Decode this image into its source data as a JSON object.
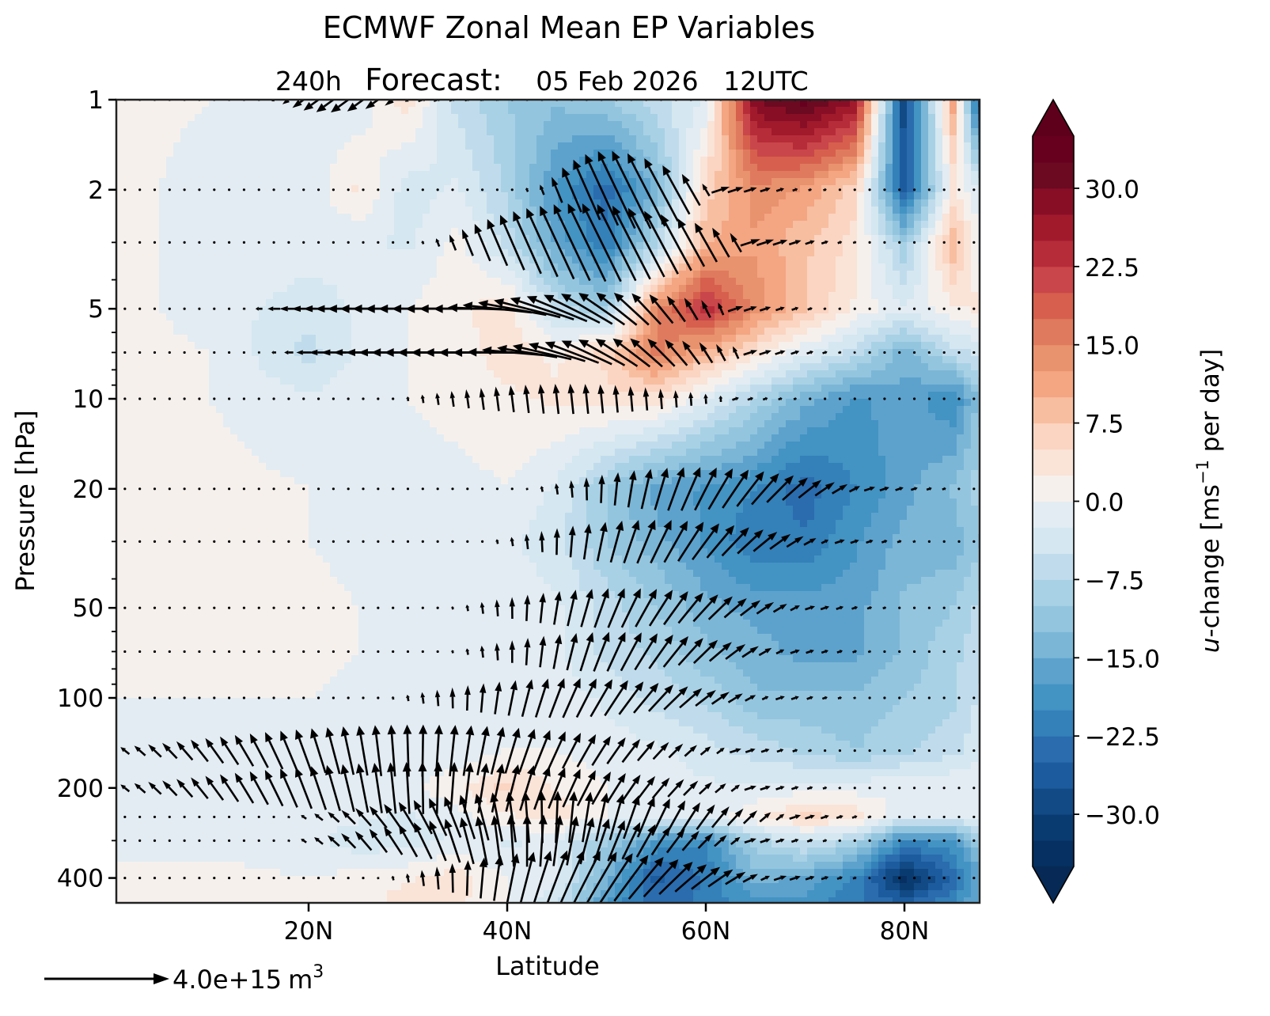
{
  "chart_data": {
    "type": "heatmap",
    "title": "ECMWF Zonal Mean EP Variables",
    "subtitle": {
      "lead": "240h",
      "label": "Forecast:",
      "date": "05 Feb 2026",
      "time": "12UTC"
    },
    "xlabel": "Latitude",
    "ylabel": "Pressure [hPa]",
    "xlim": [
      0.6,
      87.6
    ],
    "ylim": [
      484,
      1
    ],
    "yscale": "log",
    "x_ticks": [
      {
        "value": 20,
        "label": "20N"
      },
      {
        "value": 40,
        "label": "40N"
      },
      {
        "value": 60,
        "label": "60N"
      },
      {
        "value": 80,
        "label": "80N"
      }
    ],
    "y_ticks": [
      {
        "value": 1,
        "label": "1"
      },
      {
        "value": 2,
        "label": "2"
      },
      {
        "value": 5,
        "label": "5"
      },
      {
        "value": 10,
        "label": "10"
      },
      {
        "value": 20,
        "label": "20"
      },
      {
        "value": 50,
        "label": "50"
      },
      {
        "value": 100,
        "label": "100"
      },
      {
        "value": 200,
        "label": "200"
      },
      {
        "value": 400,
        "label": "400"
      }
    ],
    "y_minor_ticks": [
      3,
      4,
      6,
      7,
      8,
      9,
      30,
      40,
      60,
      70,
      80,
      90,
      300
    ],
    "colorbar": {
      "label_italic": "u",
      "label_rest": "-change [ms",
      "label_sup": "−1",
      "label_end": " per day]",
      "levels_min": -35,
      "levels_max": 35,
      "level_step": 2.5,
      "extend": "both",
      "ticks": [
        {
          "value": 30,
          "label": "30.0"
        },
        {
          "value": 22.5,
          "label": "22.5"
        },
        {
          "value": 15,
          "label": "15.0"
        },
        {
          "value": 7.5,
          "label": "7.5"
        },
        {
          "value": 0,
          "label": "0.0"
        },
        {
          "value": -7.5,
          "label": "−7.5"
        },
        {
          "value": -15,
          "label": "−15.0"
        },
        {
          "value": -22.5,
          "label": "−22.5"
        },
        {
          "value": -30,
          "label": "−30.0"
        }
      ],
      "colors": [
        "#053061",
        "#0a3b70",
        "#124a85",
        "#1c5c9e",
        "#2a6cae",
        "#3480b9",
        "#4393c3",
        "#5da2cd",
        "#7bb6d6",
        "#94c5df",
        "#a8d1e5",
        "#c0dcec",
        "#d5e7f0",
        "#e3ecf3",
        "#eff3f5",
        "#f6f0ec",
        "#fae3d7",
        "#fbd5c2",
        "#f7bea0",
        "#f4a582",
        "#e9926e",
        "#df7a5e",
        "#d6604d",
        "#c9464a",
        "#b72c39",
        "#a11a2c",
        "#880e26",
        "#6b0a21",
        "#67001f"
      ],
      "extend_colors": {
        "low": "#062a55",
        "high": "#5e001c"
      }
    },
    "field": {
      "description_units": "u-change [ms-1 per day]",
      "lat": [
        0,
        10,
        20,
        25,
        30,
        35,
        40,
        45,
        50,
        55,
        60,
        65,
        70,
        75,
        80,
        85,
        88
      ],
      "pressure": [
        1,
        2,
        3,
        5,
        7,
        10,
        20,
        30,
        50,
        70,
        100,
        150,
        200,
        250,
        300,
        400,
        480
      ],
      "values": [
        [
          1,
          0,
          -1,
          -2,
          4,
          -6,
          -10,
          -12,
          -10,
          -6,
          -2,
          30,
          34,
          28,
          -30,
          12,
          -35
        ],
        [
          1,
          -1,
          -2,
          3,
          -4,
          -2,
          -8,
          -18,
          -24,
          -14,
          6,
          14,
          12,
          6,
          -26,
          3,
          -4
        ],
        [
          0,
          0,
          -1,
          -2,
          -3,
          1,
          -6,
          -16,
          -22,
          -8,
          10,
          12,
          8,
          4,
          -10,
          10,
          -2
        ],
        [
          1,
          -1,
          -4,
          -2,
          0,
          2,
          4,
          -6,
          -10,
          14,
          24,
          14,
          8,
          2,
          -2,
          2,
          3
        ],
        [
          1,
          0,
          -6,
          -2,
          0,
          1,
          4,
          2,
          6,
          16,
          10,
          4,
          -2,
          -6,
          -14,
          -6,
          -4
        ],
        [
          1,
          0,
          -2,
          -1,
          0,
          1,
          2,
          3,
          4,
          4,
          -2,
          -8,
          -14,
          -18,
          -16,
          -20,
          -10
        ],
        [
          0,
          1,
          0,
          0,
          -1,
          -1,
          0,
          -3,
          -10,
          -16,
          -18,
          -20,
          -24,
          -20,
          -16,
          -12,
          -8
        ],
        [
          0,
          0,
          0,
          -1,
          -1,
          -2,
          -2,
          -4,
          -10,
          -14,
          -18,
          -22,
          -22,
          -18,
          -14,
          -14,
          -10
        ],
        [
          0,
          1,
          1,
          0,
          -1,
          -1,
          -1,
          -2,
          -6,
          -10,
          -14,
          -16,
          -16,
          -16,
          -12,
          -10,
          -6
        ],
        [
          0,
          0,
          1,
          0,
          0,
          -1,
          -2,
          -2,
          -6,
          -8,
          -12,
          -14,
          -16,
          -16,
          -12,
          -8,
          -6
        ],
        [
          0,
          0,
          0,
          -1,
          -1,
          -1,
          0,
          -1,
          -3,
          -6,
          -8,
          -12,
          -12,
          -12,
          -10,
          -8,
          -4
        ],
        [
          -1,
          0,
          -1,
          -2,
          -1,
          -2,
          0,
          0,
          -1,
          -2,
          -4,
          -6,
          -8,
          -10,
          -8,
          -6,
          -2
        ],
        [
          -1,
          -1,
          0,
          0,
          -1,
          2,
          6,
          2,
          0,
          -1,
          -2,
          -2,
          -1,
          -1,
          0,
          0,
          0
        ],
        [
          0,
          -1,
          -1,
          -2,
          -3,
          -1,
          2,
          4,
          0,
          -1,
          -2,
          2,
          6,
          4,
          -2,
          -2,
          -1
        ],
        [
          0,
          -1,
          -2,
          -4,
          -4,
          -2,
          -3,
          -2,
          -10,
          -18,
          -20,
          -8,
          -4,
          -8,
          -20,
          -18,
          -8
        ],
        [
          0,
          1,
          0,
          1,
          2,
          4,
          0,
          -2,
          -14,
          -26,
          -22,
          -14,
          -16,
          -20,
          -34,
          -24,
          -14
        ],
        [
          0,
          0,
          0,
          1,
          4,
          3,
          0,
          -4,
          -18,
          -24,
          -22,
          -18,
          -18,
          -22,
          -26,
          -20,
          -14
        ]
      ]
    },
    "vectors": {
      "quantity": "EP flux",
      "key_magnitude": 4000000000000000.0,
      "key_label": "4.0e+15",
      "key_unit": "m",
      "key_unit_sup": "3",
      "row_pressures": [
        1,
        2,
        3,
        5,
        7,
        10,
        20,
        30,
        50,
        70,
        100,
        150,
        200,
        250,
        300,
        400
      ],
      "lat_step": 1.5,
      "features": [
        {
          "pressure": 1,
          "lat_range": [
            17,
            30
          ],
          "dir": "south-west",
          "strength": 0.5
        },
        {
          "pressure": 2,
          "lat_range": [
            44,
            60
          ],
          "dir": "north-west",
          "strength": 1.0
        },
        {
          "pressure": 3,
          "lat_range": [
            34,
            64
          ],
          "dir": "north-west",
          "strength": 1.0
        },
        {
          "pressure": 5,
          "lat_range": [
            16,
            62
          ],
          "dir": "west to north-west",
          "strength": 0.8
        },
        {
          "pressure": 7,
          "lat_range": [
            18,
            64
          ],
          "dir": "west to north-west",
          "strength": 0.7
        },
        {
          "pressure": 10,
          "lat_range": [
            30,
            62
          ],
          "dir": "upward",
          "strength": 0.35
        },
        {
          "pressure": 20,
          "lat_range": [
            44,
            76
          ],
          "dir": "upward, poleward-tilted",
          "strength": 0.55
        },
        {
          "pressure": 30,
          "lat_range": [
            40,
            72
          ],
          "dir": "upward, poleward-tilted",
          "strength": 0.55
        },
        {
          "pressure": 50,
          "lat_range": [
            36,
            70
          ],
          "dir": "upward, poleward-tilted",
          "strength": 0.5
        },
        {
          "pressure": 70,
          "lat_range": [
            36,
            68
          ],
          "dir": "upward, poleward-tilted",
          "strength": 0.5
        },
        {
          "pressure": 100,
          "lat_range": [
            30,
            66
          ],
          "dir": "upward, poleward-tilted",
          "strength": 0.5
        },
        {
          "pressure": 150,
          "lat_range": [
            0,
            62
          ],
          "dir": "upward fan",
          "strength": 0.6
        },
        {
          "pressure": 200,
          "lat_range": [
            0,
            64
          ],
          "dir": "upward fan",
          "strength": 0.6
        },
        {
          "pressure": 250,
          "lat_range": [
            20,
            68
          ],
          "dir": "upward fan",
          "strength": 0.6
        },
        {
          "pressure": 300,
          "lat_range": [
            20,
            64
          ],
          "dir": "upward fan",
          "strength": 0.6
        },
        {
          "pressure": 400,
          "lat_range": [
            30,
            66
          ],
          "dir": "upward, poleward-tilted",
          "strength": 0.7
        }
      ]
    }
  }
}
